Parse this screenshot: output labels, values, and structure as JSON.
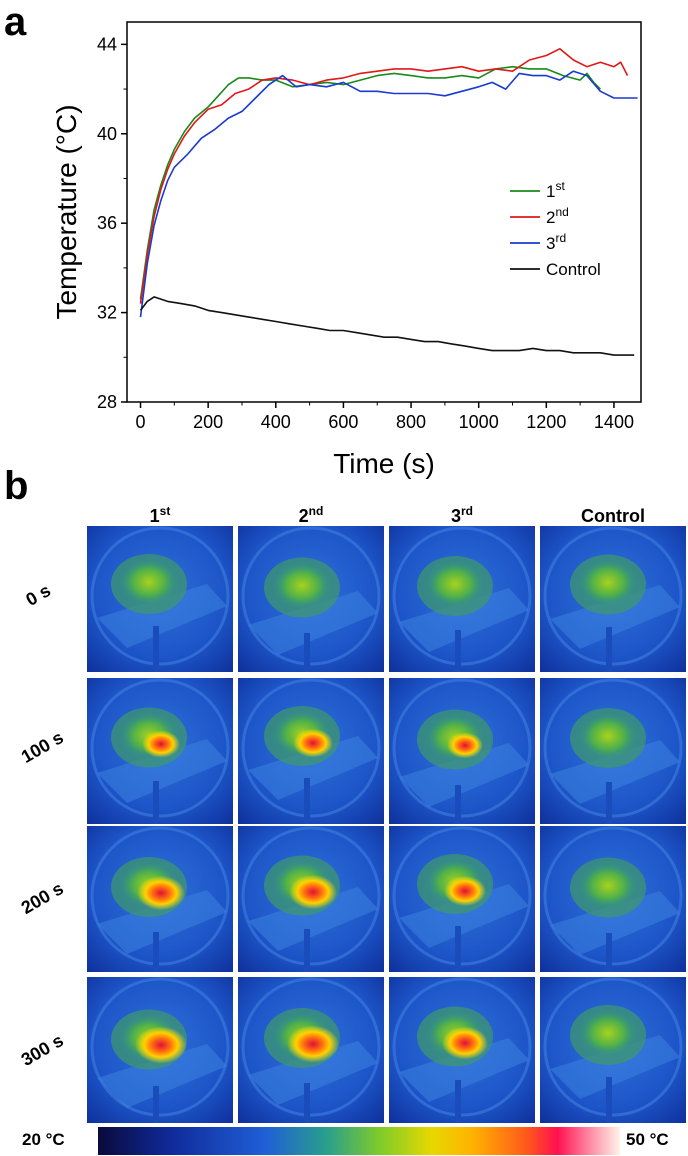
{
  "panel_a_label": "a",
  "panel_b_label": "b",
  "chart_data": {
    "type": "line",
    "xlabel": "Time (s)",
    "ylabel": "Temperature (°C)",
    "xlim": [
      -40,
      1480
    ],
    "ylim": [
      28,
      45
    ],
    "xticks": [
      0,
      200,
      400,
      600,
      800,
      1000,
      1200,
      1400
    ],
    "yticks": [
      28,
      32,
      36,
      40,
      44
    ],
    "legend_position": "center-right",
    "series": [
      {
        "name": "1st",
        "label_base": "1",
        "label_sup": "st",
        "color": "#1a8a1a",
        "points": [
          [
            0,
            32.6
          ],
          [
            20,
            34.8
          ],
          [
            40,
            36.6
          ],
          [
            60,
            37.7
          ],
          [
            80,
            38.6
          ],
          [
            100,
            39.3
          ],
          [
            130,
            40.1
          ],
          [
            160,
            40.7
          ],
          [
            200,
            41.2
          ],
          [
            230,
            41.7
          ],
          [
            260,
            42.2
          ],
          [
            290,
            42.5
          ],
          [
            320,
            42.5
          ],
          [
            360,
            42.4
          ],
          [
            400,
            42.4
          ],
          [
            450,
            42.1
          ],
          [
            500,
            42.2
          ],
          [
            550,
            42.3
          ],
          [
            600,
            42.2
          ],
          [
            650,
            42.4
          ],
          [
            700,
            42.6
          ],
          [
            750,
            42.7
          ],
          [
            800,
            42.6
          ],
          [
            850,
            42.5
          ],
          [
            900,
            42.5
          ],
          [
            950,
            42.6
          ],
          [
            1000,
            42.5
          ],
          [
            1050,
            42.9
          ],
          [
            1100,
            43.0
          ],
          [
            1150,
            42.9
          ],
          [
            1200,
            42.9
          ],
          [
            1250,
            42.6
          ],
          [
            1300,
            42.4
          ],
          [
            1320,
            42.7
          ],
          [
            1340,
            42.3
          ],
          [
            1360,
            42.0
          ]
        ]
      },
      {
        "name": "2nd",
        "label_base": "2",
        "label_sup": "nd",
        "color": "#e01818",
        "points": [
          [
            0,
            32.4
          ],
          [
            20,
            34.6
          ],
          [
            40,
            36.3
          ],
          [
            60,
            37.5
          ],
          [
            80,
            38.4
          ],
          [
            100,
            39.1
          ],
          [
            130,
            39.9
          ],
          [
            160,
            40.5
          ],
          [
            200,
            41.1
          ],
          [
            240,
            41.3
          ],
          [
            280,
            41.8
          ],
          [
            320,
            42.0
          ],
          [
            360,
            42.4
          ],
          [
            400,
            42.5
          ],
          [
            450,
            42.4
          ],
          [
            500,
            42.2
          ],
          [
            550,
            42.4
          ],
          [
            600,
            42.5
          ],
          [
            650,
            42.7
          ],
          [
            700,
            42.8
          ],
          [
            750,
            42.9
          ],
          [
            800,
            42.9
          ],
          [
            850,
            42.8
          ],
          [
            900,
            42.9
          ],
          [
            950,
            43.0
          ],
          [
            1000,
            42.8
          ],
          [
            1050,
            42.9
          ],
          [
            1100,
            42.8
          ],
          [
            1150,
            43.3
          ],
          [
            1200,
            43.5
          ],
          [
            1240,
            43.8
          ],
          [
            1280,
            43.3
          ],
          [
            1320,
            43.0
          ],
          [
            1360,
            43.2
          ],
          [
            1400,
            43.0
          ],
          [
            1420,
            43.2
          ],
          [
            1440,
            42.6
          ]
        ]
      },
      {
        "name": "3rd",
        "label_base": "3",
        "label_sup": "rd",
        "color": "#1a3ad0",
        "points": [
          [
            0,
            31.8
          ],
          [
            20,
            34.2
          ],
          [
            40,
            35.9
          ],
          [
            60,
            37.0
          ],
          [
            80,
            37.9
          ],
          [
            100,
            38.5
          ],
          [
            140,
            39.1
          ],
          [
            180,
            39.8
          ],
          [
            220,
            40.2
          ],
          [
            260,
            40.7
          ],
          [
            300,
            41.0
          ],
          [
            340,
            41.6
          ],
          [
            380,
            42.2
          ],
          [
            420,
            42.6
          ],
          [
            460,
            42.1
          ],
          [
            500,
            42.2
          ],
          [
            550,
            42.1
          ],
          [
            600,
            42.3
          ],
          [
            650,
            41.9
          ],
          [
            700,
            41.9
          ],
          [
            750,
            41.8
          ],
          [
            800,
            41.8
          ],
          [
            850,
            41.8
          ],
          [
            900,
            41.7
          ],
          [
            950,
            41.9
          ],
          [
            1000,
            42.1
          ],
          [
            1040,
            42.3
          ],
          [
            1080,
            42.0
          ],
          [
            1120,
            42.7
          ],
          [
            1160,
            42.6
          ],
          [
            1200,
            42.6
          ],
          [
            1240,
            42.4
          ],
          [
            1280,
            42.8
          ],
          [
            1320,
            42.6
          ],
          [
            1360,
            41.9
          ],
          [
            1400,
            41.6
          ],
          [
            1440,
            41.6
          ],
          [
            1470,
            41.6
          ]
        ]
      },
      {
        "name": "Control",
        "label_base": "Control",
        "label_sup": "",
        "color": "#111111",
        "points": [
          [
            0,
            32.1
          ],
          [
            20,
            32.5
          ],
          [
            40,
            32.7
          ],
          [
            80,
            32.5
          ],
          [
            120,
            32.4
          ],
          [
            160,
            32.3
          ],
          [
            200,
            32.1
          ],
          [
            240,
            32.0
          ],
          [
            280,
            31.9
          ],
          [
            320,
            31.8
          ],
          [
            360,
            31.7
          ],
          [
            400,
            31.6
          ],
          [
            440,
            31.5
          ],
          [
            480,
            31.4
          ],
          [
            520,
            31.3
          ],
          [
            560,
            31.2
          ],
          [
            600,
            31.2
          ],
          [
            640,
            31.1
          ],
          [
            680,
            31.0
          ],
          [
            720,
            30.9
          ],
          [
            760,
            30.9
          ],
          [
            800,
            30.8
          ],
          [
            840,
            30.7
          ],
          [
            880,
            30.7
          ],
          [
            920,
            30.6
          ],
          [
            960,
            30.5
          ],
          [
            1000,
            30.4
          ],
          [
            1040,
            30.3
          ],
          [
            1080,
            30.3
          ],
          [
            1120,
            30.3
          ],
          [
            1160,
            30.4
          ],
          [
            1200,
            30.3
          ],
          [
            1240,
            30.3
          ],
          [
            1280,
            30.2
          ],
          [
            1320,
            30.2
          ],
          [
            1360,
            30.2
          ],
          [
            1400,
            30.1
          ],
          [
            1440,
            30.1
          ],
          [
            1460,
            30.1
          ]
        ]
      }
    ]
  },
  "thermal": {
    "columns": [
      {
        "base": "1",
        "sup": "st"
      },
      {
        "base": "2",
        "sup": "nd"
      },
      {
        "base": "3",
        "sup": "rd"
      },
      {
        "base": "Control",
        "sup": ""
      }
    ],
    "rows": [
      "0 s",
      "100 s",
      "200 s",
      "300 s"
    ],
    "colorbar_min": "20 °C",
    "colorbar_max": "50 °C",
    "hot_intensity": [
      [
        0,
        0,
        0,
        0
      ],
      [
        0.55,
        0.6,
        0.5,
        0
      ],
      [
        0.8,
        0.8,
        0.65,
        0
      ],
      [
        0.9,
        0.9,
        0.75,
        0
      ]
    ]
  }
}
